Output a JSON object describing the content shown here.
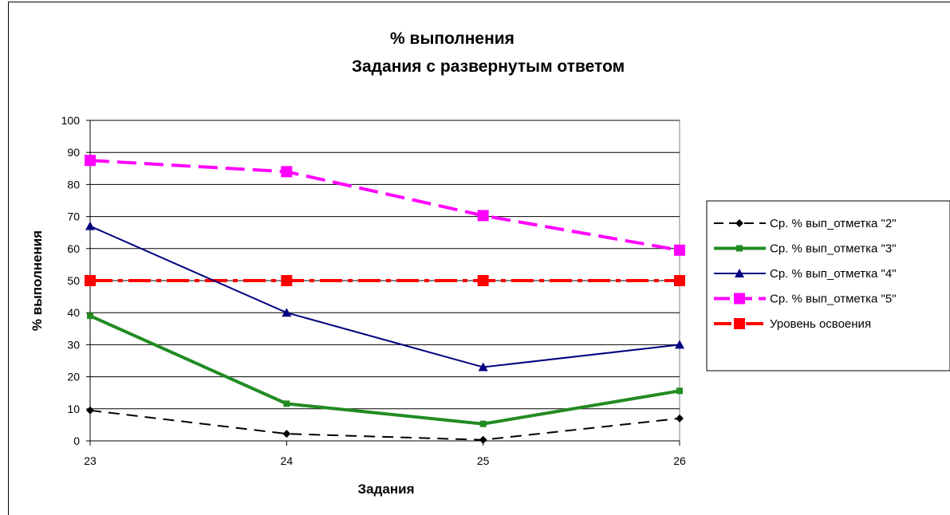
{
  "chart_data": {
    "type": "line",
    "title": "% выполнения",
    "subtitle": "Задания с развернутым ответом",
    "xlabel": "Задания",
    "ylabel": "% выполнения",
    "categories": [
      "23",
      "24",
      "25",
      "26"
    ],
    "ylim": [
      0,
      100
    ],
    "yticks": [
      0,
      10,
      20,
      30,
      40,
      50,
      60,
      70,
      80,
      90,
      100
    ],
    "grid": true,
    "legend_position": "right",
    "series": [
      {
        "name": "Ср. % вып_отметка \"2\"",
        "values": [
          9.5,
          2.2,
          0.3,
          7.0
        ],
        "color": "#000000",
        "dash": "dashed",
        "marker": "diamond",
        "width": "thin"
      },
      {
        "name": "Ср. % вып_отметка \"3\"",
        "values": [
          39.0,
          11.6,
          5.3,
          15.6
        ],
        "color": "#228B22",
        "dash": "solid",
        "marker": "square-small",
        "width": "thick"
      },
      {
        "name": "Ср. % вып_отметка \"4\"",
        "values": [
          67.0,
          40.0,
          23.0,
          30.0
        ],
        "color": "#000080",
        "dash": "solid",
        "marker": "triangle",
        "width": "medium"
      },
      {
        "name": "Ср. % вып_отметка \"5\"",
        "values": [
          87.5,
          84.0,
          70.3,
          59.5
        ],
        "color": "#FF00FF",
        "dash": "long-dash",
        "marker": "square",
        "width": "thick"
      },
      {
        "name": "Уровень освоения",
        "values": [
          50,
          50,
          50,
          50
        ],
        "color": "#FF0000",
        "dash": "dash-dot",
        "marker": "square",
        "width": "thick"
      }
    ]
  }
}
